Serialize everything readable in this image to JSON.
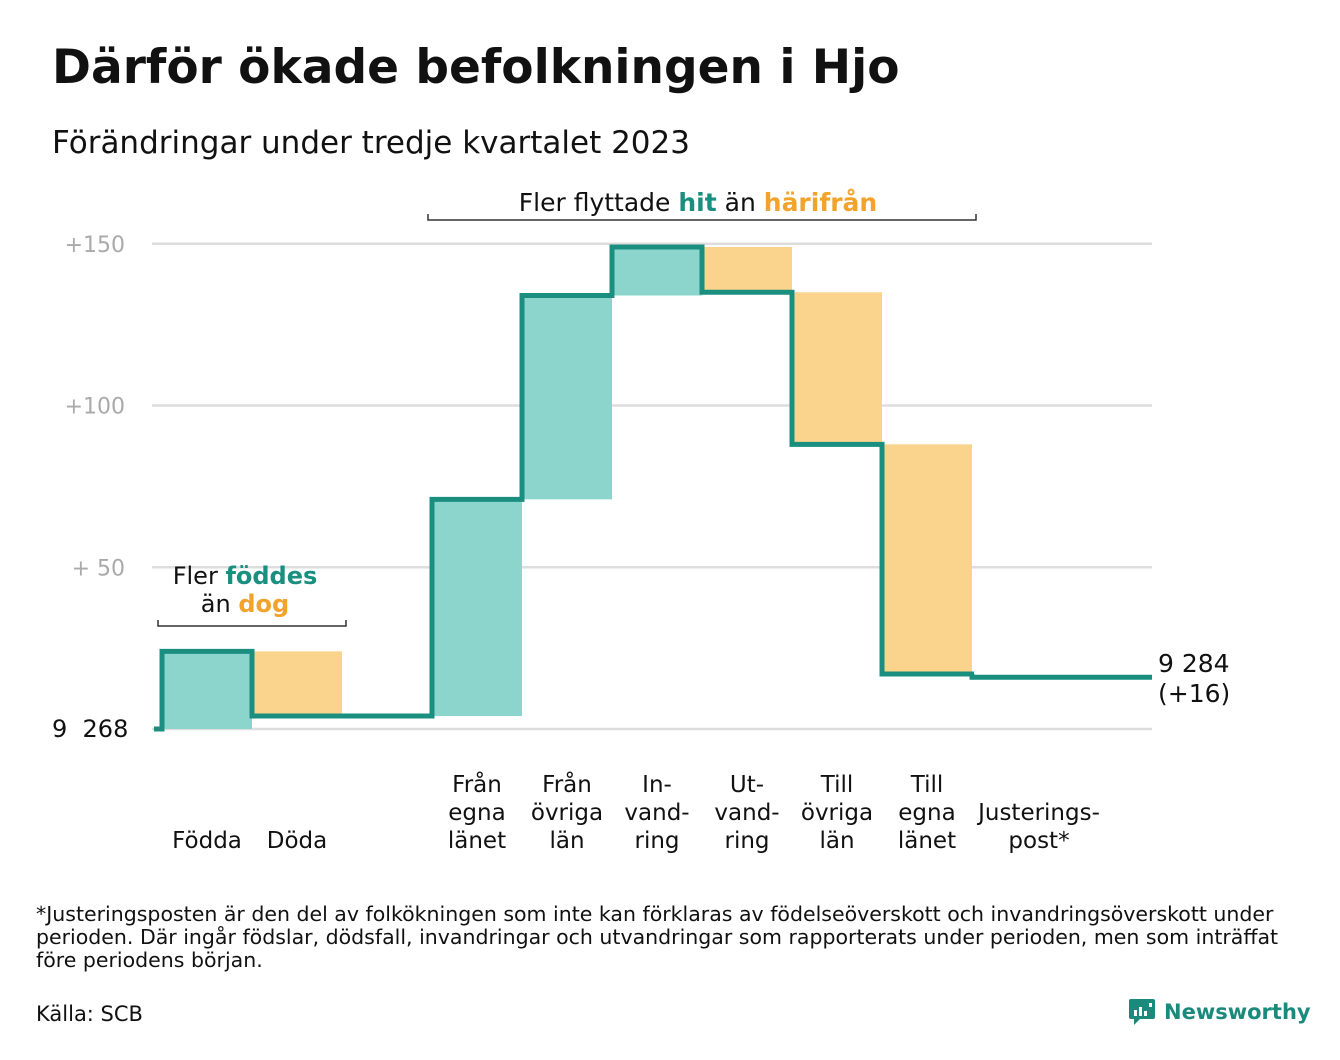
{
  "title": "Därför ökade befolkningen i Hjo",
  "subtitle": "Förändringar under tredje kvartalet 2023",
  "chart_data": {
    "type": "bar",
    "subtype": "waterfall",
    "baseline_label": "9 268",
    "baseline_value": 9268,
    "end_value_label": "9 284",
    "end_change_label": "(+16)",
    "y_tick_labels": [
      "+150",
      "+100",
      "+  50"
    ],
    "y_ticks": [
      150,
      100,
      50
    ],
    "ylim": [
      0,
      150
    ],
    "grid": true,
    "categories": [
      {
        "label_lines": [
          "Födda"
        ],
        "start": 0,
        "end": 24,
        "kind": "inflow"
      },
      {
        "label_lines": [
          "Döda"
        ],
        "start": 24,
        "end": 4,
        "kind": "outflow"
      },
      {
        "label_lines": [],
        "start": 4,
        "end": 4,
        "kind": "none"
      },
      {
        "label_lines": [
          "Från",
          "egna",
          "länet"
        ],
        "start": 4,
        "end": 71,
        "kind": "inflow"
      },
      {
        "label_lines": [
          "Från",
          "övriga",
          "län"
        ],
        "start": 71,
        "end": 134,
        "kind": "inflow"
      },
      {
        "label_lines": [
          "In-",
          "vand-",
          "ring"
        ],
        "start": 134,
        "end": 149,
        "kind": "inflow"
      },
      {
        "label_lines": [
          "Ut-",
          "vand-",
          "ring"
        ],
        "start": 149,
        "end": 135,
        "kind": "outflow"
      },
      {
        "label_lines": [
          "Till",
          "övriga",
          "län"
        ],
        "start": 135,
        "end": 88,
        "kind": "outflow"
      },
      {
        "label_lines": [
          "Till",
          "egna",
          "länet"
        ],
        "start": 88,
        "end": 17,
        "kind": "outflow"
      },
      {
        "label_lines": [
          "Justerings-",
          "post*"
        ],
        "start": 17,
        "end": 16,
        "kind": "none"
      }
    ],
    "annotations": {
      "births": {
        "prefix": "Fler",
        "highlight1": "föddes",
        "connector": "än",
        "highlight2": "dog"
      },
      "migration": {
        "prefix": "Fler flyttade",
        "highlight1": "hit",
        "connector": "än",
        "highlight2": "härifrån"
      }
    },
    "colors": {
      "inflow": "#8cd5cc",
      "outflow": "#fad48c",
      "line": "#1a8f80",
      "highlight_in": "#1a8f80",
      "highlight_out": "#f2a32b",
      "grid": "#dddddd",
      "tick": "#aaaaaa"
    }
  },
  "footnote": "*Justeringsposten är den del av folkökningen som inte kan förklaras av födelseöverskott och invandringsöverskott under perioden. Där ingår födslar, dödsfall, invandringar och utvandringar som rapporterats under perioden, men som inträffat före periodens början.",
  "source": "Källa: SCB",
  "brand": {
    "name": "Newsworthy",
    "icon": "chart-bubble-icon",
    "color": "#1a8a7d"
  }
}
